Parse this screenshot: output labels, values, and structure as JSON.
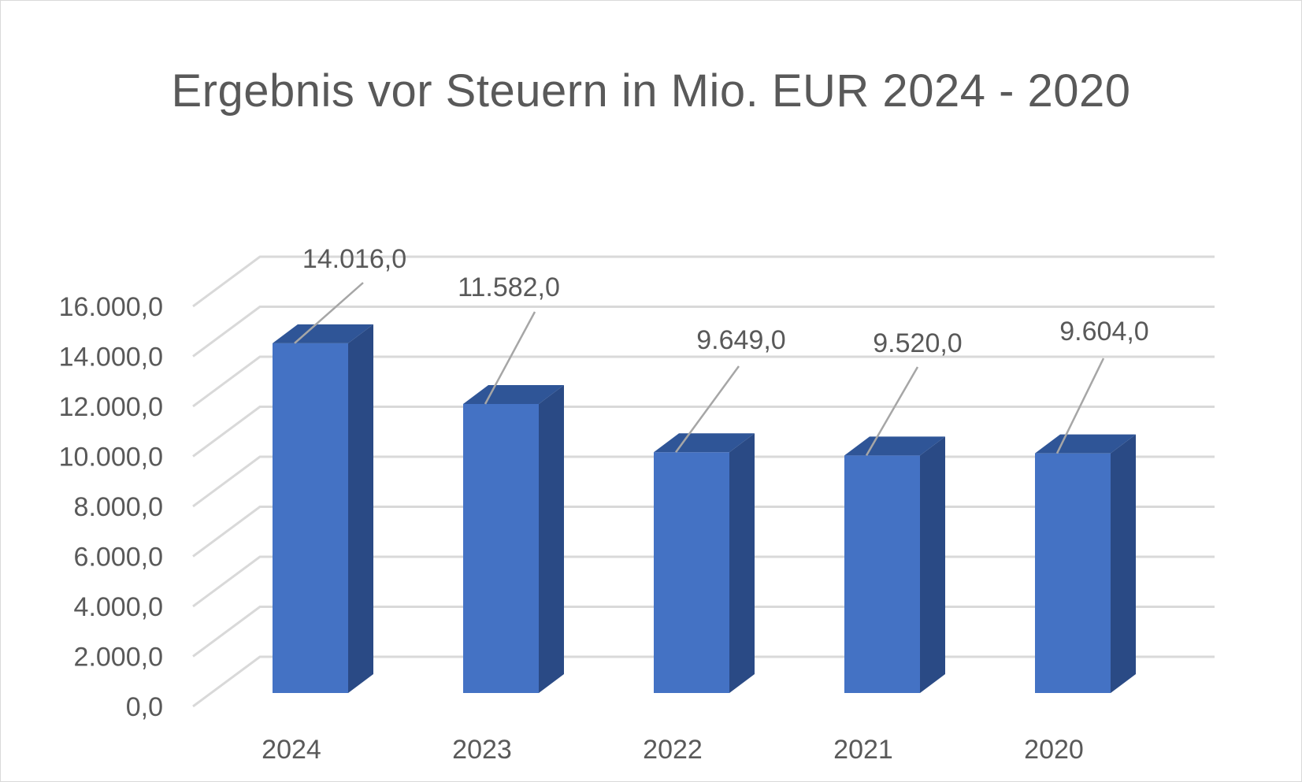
{
  "chart_data": {
    "type": "bar",
    "title": "Ergebnis vor Steuern in Mio. EUR 2024 - 2020",
    "categories": [
      "2024",
      "2023",
      "2022",
      "2021",
      "2020"
    ],
    "values": [
      14016.0,
      11582.0,
      9649.0,
      9520.0,
      9604.0
    ],
    "value_labels": [
      "14.016,0",
      "11.582,0",
      "9.649,0",
      "9.520,0",
      "9.604,0"
    ],
    "y_ticks": [
      "0,0",
      "2.000,0",
      "4.000,0",
      "6.000,0",
      "8.000,0",
      "10.000,0",
      "12.000,0",
      "14.000,0",
      "16.000,0"
    ],
    "ylim": [
      0,
      16000
    ],
    "grid": true,
    "style": "3d-column",
    "colors": {
      "front": "#4472c4",
      "top": "#2f5597",
      "side": "#2a4a85",
      "grid": "#d9d9d9",
      "leader": "#a6a6a6"
    }
  }
}
